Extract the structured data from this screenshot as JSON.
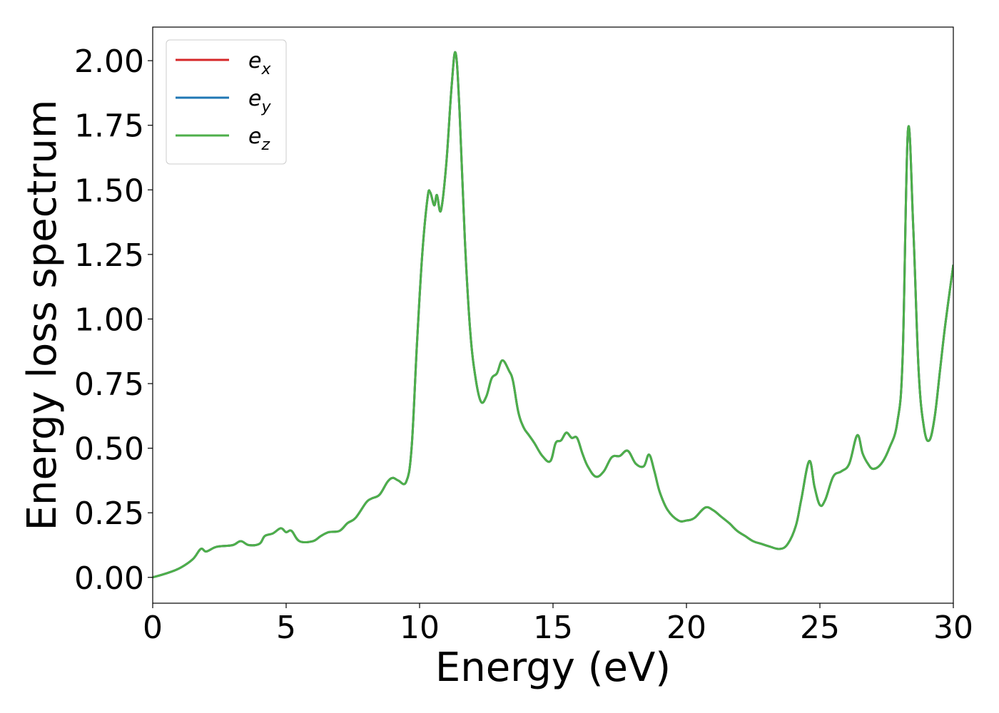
{
  "chart_data": {
    "type": "line",
    "title": "",
    "xlabel": "Energy (eV)",
    "ylabel": "Energy loss spectrum",
    "xlim": [
      0,
      30
    ],
    "ylim": [
      -0.1,
      2.13
    ],
    "xticks": [
      0,
      5,
      10,
      15,
      20,
      25,
      30
    ],
    "xtick_labels": [
      "0",
      "5",
      "10",
      "15",
      "20",
      "25",
      "30"
    ],
    "yticks": [
      0.0,
      0.25,
      0.5,
      0.75,
      1.0,
      1.25,
      1.5,
      1.75,
      2.0
    ],
    "ytick_labels": [
      "0.00",
      "0.25",
      "0.50",
      "0.75",
      "1.00",
      "1.25",
      "1.50",
      "1.75",
      "2.00"
    ],
    "grid": false,
    "legend_position": "top-left",
    "x": [
      0,
      0.5,
      1.0,
      1.5,
      1.8,
      2.0,
      2.3,
      2.5,
      3.0,
      3.3,
      3.6,
      4.0,
      4.2,
      4.5,
      4.8,
      5.0,
      5.2,
      5.5,
      6.0,
      6.3,
      6.6,
      7.0,
      7.3,
      7.6,
      8.0,
      8.2,
      8.5,
      8.8,
      9.0,
      9.2,
      9.5,
      9.7,
      9.9,
      10.1,
      10.3,
      10.4,
      10.55,
      10.65,
      10.8,
      11.0,
      11.2,
      11.35,
      11.5,
      11.7,
      11.9,
      12.1,
      12.3,
      12.5,
      12.7,
      12.9,
      13.1,
      13.35,
      13.5,
      13.7,
      13.9,
      14.1,
      14.3,
      14.6,
      14.9,
      15.1,
      15.3,
      15.5,
      15.7,
      15.9,
      16.1,
      16.3,
      16.6,
      16.9,
      17.2,
      17.5,
      17.8,
      18.1,
      18.4,
      18.6,
      18.8,
      19.0,
      19.3,
      19.7,
      20.0,
      20.3,
      20.7,
      21.0,
      21.3,
      21.6,
      21.9,
      22.2,
      22.5,
      22.8,
      23.1,
      23.5,
      23.8,
      24.1,
      24.3,
      24.6,
      24.8,
      25.0,
      25.2,
      25.5,
      25.8,
      26.1,
      26.4,
      26.6,
      26.8,
      27.0,
      27.3,
      27.6,
      27.9,
      28.1,
      28.3,
      28.5,
      28.7,
      28.9,
      29.1,
      29.3,
      29.5,
      29.7,
      30.0
    ],
    "series": [
      {
        "name": "e_x",
        "color": "#d62728",
        "y": [
          0.0,
          0.015,
          0.035,
          0.07,
          0.11,
          0.1,
          0.115,
          0.12,
          0.125,
          0.14,
          0.125,
          0.13,
          0.16,
          0.17,
          0.19,
          0.175,
          0.18,
          0.14,
          0.14,
          0.16,
          0.175,
          0.18,
          0.21,
          0.23,
          0.29,
          0.305,
          0.32,
          0.37,
          0.385,
          0.375,
          0.37,
          0.5,
          0.9,
          1.25,
          1.47,
          1.49,
          1.44,
          1.48,
          1.42,
          1.6,
          1.9,
          2.03,
          1.8,
          1.3,
          0.95,
          0.77,
          0.68,
          0.7,
          0.77,
          0.79,
          0.84,
          0.8,
          0.76,
          0.64,
          0.58,
          0.55,
          0.52,
          0.47,
          0.45,
          0.52,
          0.53,
          0.56,
          0.54,
          0.54,
          0.48,
          0.43,
          0.39,
          0.41,
          0.465,
          0.47,
          0.49,
          0.44,
          0.43,
          0.475,
          0.41,
          0.33,
          0.26,
          0.22,
          0.22,
          0.23,
          0.27,
          0.26,
          0.235,
          0.21,
          0.18,
          0.16,
          0.14,
          0.13,
          0.12,
          0.11,
          0.13,
          0.2,
          0.3,
          0.45,
          0.35,
          0.28,
          0.3,
          0.39,
          0.41,
          0.44,
          0.55,
          0.48,
          0.44,
          0.42,
          0.44,
          0.5,
          0.6,
          0.85,
          1.73,
          1.35,
          0.8,
          0.58,
          0.53,
          0.62,
          0.8,
          0.98,
          1.21
        ]
      },
      {
        "name": "e_y",
        "color": "#1f77b4",
        "y": [
          0.0,
          0.015,
          0.035,
          0.07,
          0.11,
          0.1,
          0.115,
          0.12,
          0.125,
          0.14,
          0.125,
          0.13,
          0.16,
          0.17,
          0.19,
          0.175,
          0.18,
          0.14,
          0.14,
          0.16,
          0.175,
          0.18,
          0.21,
          0.23,
          0.29,
          0.305,
          0.32,
          0.37,
          0.385,
          0.375,
          0.37,
          0.5,
          0.9,
          1.25,
          1.47,
          1.49,
          1.44,
          1.48,
          1.42,
          1.6,
          1.9,
          2.03,
          1.8,
          1.3,
          0.95,
          0.77,
          0.68,
          0.7,
          0.77,
          0.79,
          0.84,
          0.8,
          0.76,
          0.64,
          0.58,
          0.55,
          0.52,
          0.47,
          0.45,
          0.52,
          0.53,
          0.56,
          0.54,
          0.54,
          0.48,
          0.43,
          0.39,
          0.41,
          0.465,
          0.47,
          0.49,
          0.44,
          0.43,
          0.475,
          0.41,
          0.33,
          0.26,
          0.22,
          0.22,
          0.23,
          0.27,
          0.26,
          0.235,
          0.21,
          0.18,
          0.16,
          0.14,
          0.13,
          0.12,
          0.11,
          0.13,
          0.2,
          0.3,
          0.45,
          0.35,
          0.28,
          0.3,
          0.39,
          0.41,
          0.44,
          0.55,
          0.48,
          0.44,
          0.42,
          0.44,
          0.5,
          0.6,
          0.85,
          1.73,
          1.35,
          0.8,
          0.58,
          0.53,
          0.62,
          0.8,
          0.98,
          1.21
        ]
      },
      {
        "name": "e_z",
        "color": "#4daf4a",
        "y": [
          0.0,
          0.015,
          0.035,
          0.07,
          0.11,
          0.1,
          0.115,
          0.12,
          0.125,
          0.14,
          0.125,
          0.13,
          0.16,
          0.17,
          0.19,
          0.175,
          0.18,
          0.14,
          0.14,
          0.16,
          0.175,
          0.18,
          0.21,
          0.23,
          0.29,
          0.305,
          0.32,
          0.37,
          0.385,
          0.375,
          0.37,
          0.5,
          0.9,
          1.25,
          1.47,
          1.49,
          1.44,
          1.48,
          1.42,
          1.6,
          1.9,
          2.03,
          1.8,
          1.3,
          0.95,
          0.77,
          0.68,
          0.7,
          0.77,
          0.79,
          0.84,
          0.8,
          0.76,
          0.64,
          0.58,
          0.55,
          0.52,
          0.47,
          0.45,
          0.52,
          0.53,
          0.56,
          0.54,
          0.54,
          0.48,
          0.43,
          0.39,
          0.41,
          0.465,
          0.47,
          0.49,
          0.44,
          0.43,
          0.475,
          0.41,
          0.33,
          0.26,
          0.22,
          0.22,
          0.23,
          0.27,
          0.26,
          0.235,
          0.21,
          0.18,
          0.16,
          0.14,
          0.13,
          0.12,
          0.11,
          0.13,
          0.2,
          0.3,
          0.45,
          0.35,
          0.28,
          0.3,
          0.39,
          0.41,
          0.44,
          0.55,
          0.48,
          0.44,
          0.42,
          0.44,
          0.5,
          0.6,
          0.85,
          1.73,
          1.35,
          0.8,
          0.58,
          0.53,
          0.62,
          0.8,
          0.98,
          1.21
        ]
      }
    ]
  },
  "legend": {
    "entries": [
      {
        "base": "e",
        "sub": "x"
      },
      {
        "base": "e",
        "sub": "y"
      },
      {
        "base": "e",
        "sub": "z"
      }
    ]
  }
}
